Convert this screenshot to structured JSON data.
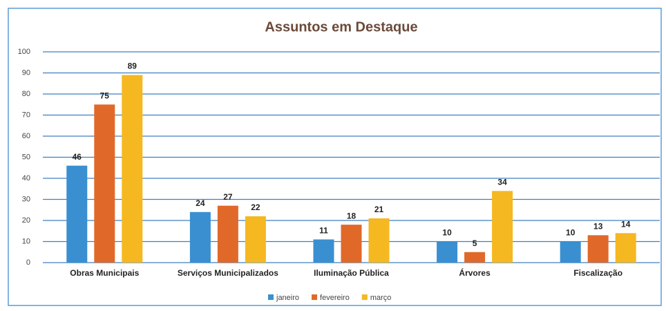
{
  "chart_data": {
    "type": "bar",
    "title": "Assuntos em Destaque",
    "categories": [
      "Obras Municipais",
      "Serviços Municipalizados",
      "Iluminação Pública",
      "Árvores",
      "Fiscalização"
    ],
    "series": [
      {
        "name": "janeiro",
        "color": "#3a8fd0",
        "values": [
          46,
          24,
          11,
          10,
          10
        ]
      },
      {
        "name": "fevereiro",
        "color": "#e0692a",
        "values": [
          75,
          27,
          18,
          5,
          13
        ]
      },
      {
        "name": "março",
        "color": "#f5b820",
        "values": [
          89,
          22,
          21,
          34,
          14
        ]
      }
    ],
    "ylim": [
      0,
      100
    ],
    "yticks": [
      0,
      10,
      20,
      30,
      40,
      50,
      60,
      70,
      80,
      90,
      100
    ],
    "grid": true,
    "legend": "bottom"
  }
}
